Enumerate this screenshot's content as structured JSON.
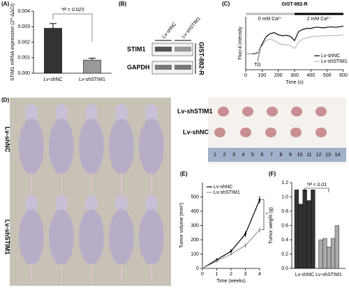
{
  "panels": [
    "(A)",
    "(B)",
    "(C)",
    "(D)",
    "(E)",
    "(F)"
  ],
  "chart_data": [
    {
      "type": "bar",
      "ylabel": "STIM1 mRNA expression (2^-ΔΔCt)",
      "categories": [
        "Lv-shNC",
        "Lv-shSTIM1"
      ],
      "values": [
        0.0029,
        0.00085
      ],
      "errors": [
        0.0003,
        0.00012
      ],
      "colors": [
        "#333333",
        "#999999"
      ],
      "ylim": [
        0,
        0.004
      ],
      "yticks": [
        {
          "value": 0,
          "label": "0.000"
        },
        0.001,
        0.002,
        0.003,
        0.004
      ],
      "annotation": "*P = 0.023"
    },
    {
      "type": "line",
      "title": "GIST-882-R",
      "xlabel": "Time (s)",
      "ylabel": "Fluo-4 intensity",
      "x": [
        0,
        25,
        50,
        75,
        100,
        125,
        150,
        175,
        200,
        225,
        250,
        275,
        300,
        325,
        350,
        375,
        400,
        425,
        450,
        475,
        500,
        525,
        550,
        575,
        600
      ],
      "series": [
        {
          "name": "Lv-shNC",
          "color": "#000000",
          "values": [
            30,
            30,
            30,
            32,
            48,
            62,
            68,
            70,
            66,
            64,
            65,
            63,
            55,
            72,
            76,
            78,
            78,
            80,
            80,
            79,
            80,
            81,
            80,
            81,
            82
          ]
        },
        {
          "name": "Lv-shSTIM1",
          "color": "#bbbbbb",
          "values": [
            30,
            30,
            31,
            33,
            45,
            55,
            58,
            55,
            50,
            48,
            47,
            46,
            40,
            52,
            58,
            60,
            62,
            63,
            63,
            64,
            64,
            65,
            64,
            65,
            66
          ]
        }
      ],
      "xlim": [
        0,
        600
      ],
      "xticks": [
        0,
        100,
        200,
        300,
        400,
        500,
        600
      ],
      "ylim": [
        0,
        100
      ],
      "bands": [
        {
          "label": "0 mM Ca²⁺",
          "range": [
            0,
            300
          ],
          "color": "#bbbbbb"
        },
        {
          "label": "2 mM Ca²⁺",
          "range": [
            300,
            600
          ],
          "color": "#000000"
        }
      ],
      "annotations": [
        {
          "text": "TG",
          "x": 90
        }
      ],
      "legend": "lower right"
    },
    {
      "type": "line",
      "xlabel": "Time (weeks)",
      "ylabel": "Tumor volume (mm³)",
      "x": [
        0,
        1,
        2,
        3,
        4
      ],
      "series": [
        {
          "name": "Lv-shNC",
          "color": "#000000",
          "values": [
            0,
            60,
            120,
            240,
            480
          ],
          "errors": [
            0,
            10,
            15,
            20,
            25
          ]
        },
        {
          "name": "Lv-shSTIM1",
          "color": "#999999",
          "values": [
            0,
            50,
            100,
            160,
            270
          ],
          "errors": [
            0,
            8,
            10,
            15,
            20
          ]
        }
      ],
      "xlim": [
        0,
        4
      ],
      "xticks": [
        0,
        1,
        2,
        3,
        4
      ],
      "ylim": [
        0,
        600
      ],
      "yticks": [
        0,
        100,
        200,
        300,
        400,
        500
      ],
      "annotation": "*",
      "legend": "upper left"
    },
    {
      "type": "bar",
      "ylabel": "Tumor weight (g)",
      "series": [
        {
          "name": "Lv-shNC",
          "color": "#333333",
          "values": [
            1.1,
            0.9,
            1.1,
            0.95,
            1.1
          ]
        },
        {
          "name": "Lv-shSTIM1",
          "color": "#aaaaaa",
          "values": [
            0.4,
            0.42,
            0.3,
            0.42,
            0.6
          ]
        }
      ],
      "ylim": [
        0,
        1.2
      ],
      "yticks": [
        {
          "value": 0,
          "label": "0.0"
        },
        0.2,
        0.4,
        0.6,
        0.8,
        {
          "value": 1,
          "label": "1.0"
        },
        1.2
      ],
      "annotation": "*P < 0.01"
    }
  ],
  "blot": {
    "rows": [
      "STIM1",
      "GAPDH"
    ],
    "columns": [
      "Lv-shNC",
      "Lv-shSTIM1"
    ],
    "cell_line": "GIST-882-R"
  },
  "photos": {
    "left_rows": [
      "Lv-shNC",
      "Lv-shSTIM1"
    ],
    "right_rows": [
      "Lv-shSTIM1",
      "Lv-shNC"
    ],
    "ruler": [
      "1",
      "2",
      "3",
      "4",
      "5",
      "6",
      "7",
      "8",
      "9",
      "10",
      "11",
      "12",
      "13",
      "14"
    ]
  }
}
